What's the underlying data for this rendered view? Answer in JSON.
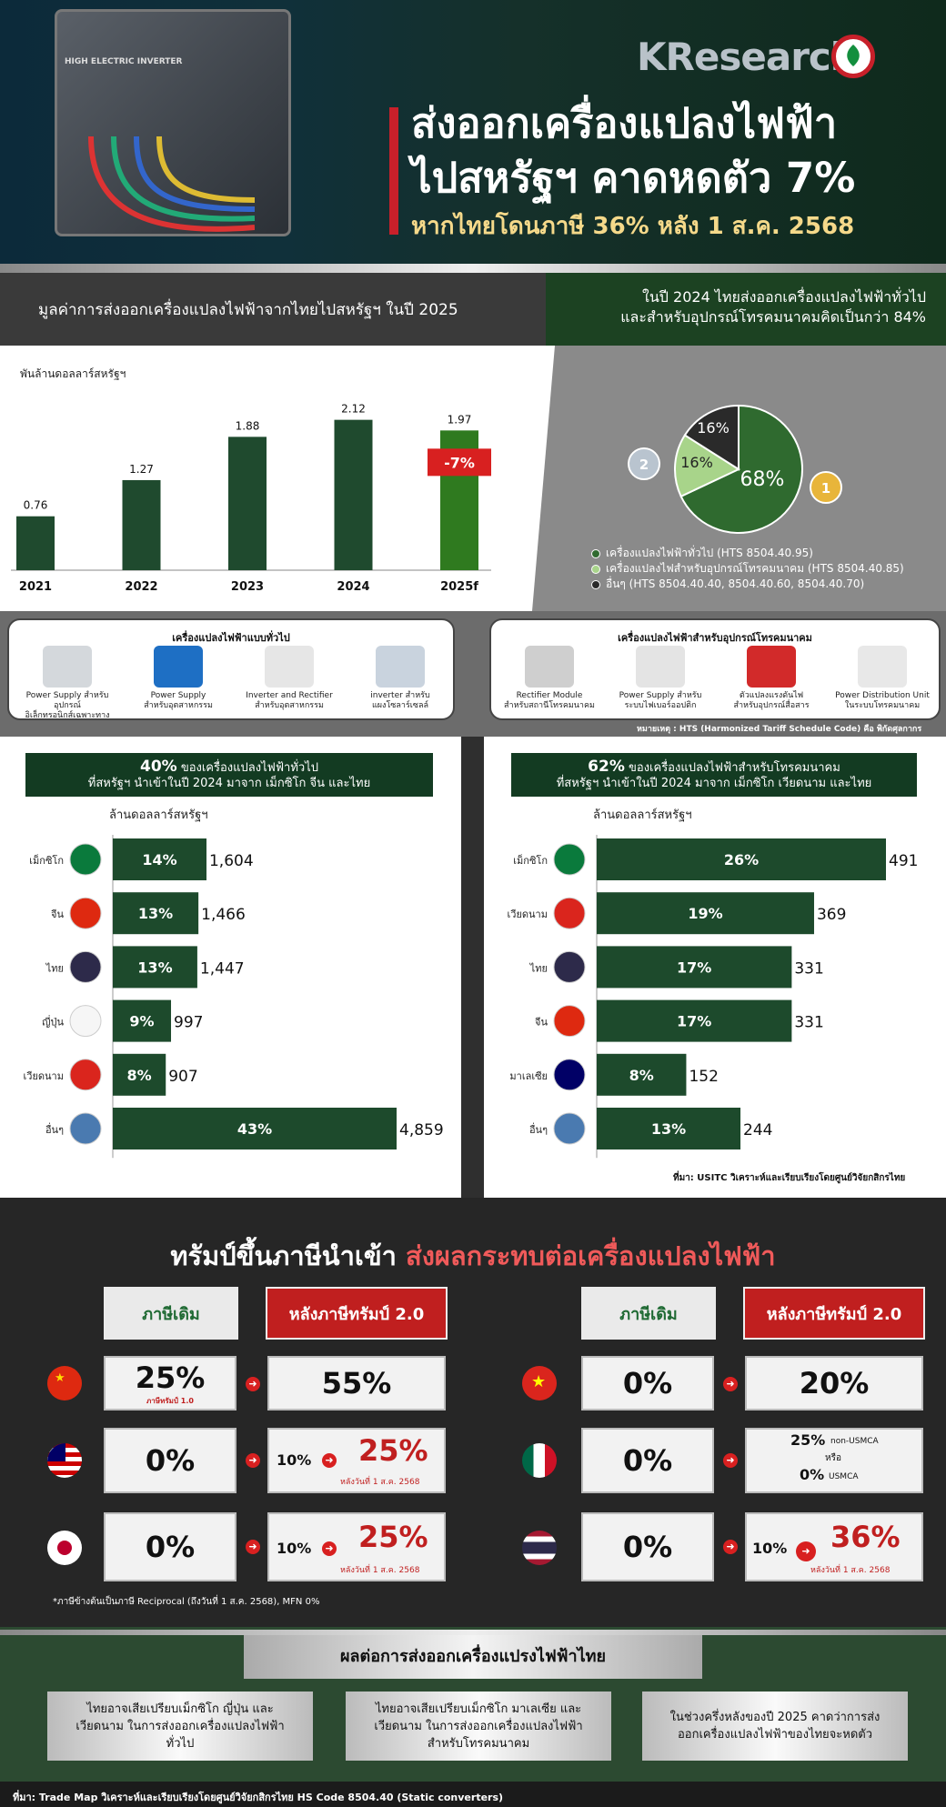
{
  "header": {
    "logo": "KResearch",
    "title_line1": "ส่งออกเครื่องแปลงไฟฟ้า",
    "title_line2": "ไปสหรัฐฯ คาดหดตัว 7%",
    "subtitle": "หากไทยโดนภาษี 36% หลัง 1 ส.ค. 2568",
    "machine_label": "HIGH ELECTRIC INVERTER"
  },
  "left_heading": "มูลค่าการส่งออกเครื่องแปลงไฟฟ้าจากไทยไปสหรัฐฯ ในปี 2025",
  "right_heading_1": "ในปี 2024 ไทยส่งออกเครื่องแปลงไฟฟ้าทั่วไป",
  "right_heading_2": "และสำหรับอุปกรณ์โทรคมนาคมคิดเป็นกว่า 84%",
  "chart_data": [
    {
      "type": "bar",
      "ylabel": "พันล้านดอลลาร์สหรัฐฯ",
      "categories": [
        "2021",
        "2022",
        "2023",
        "2024",
        "2025f"
      ],
      "values": [
        0.76,
        1.27,
        1.88,
        2.12,
        1.97
      ],
      "annotation": "-7%",
      "colors": [
        "#1f4a2e",
        "#1f4a2e",
        "#1f4a2e",
        "#1f4a2e",
        "#2f7a1f"
      ]
    },
    {
      "type": "pie",
      "slices": [
        {
          "name": "เครื่องแปลงไฟฟ้าทั่วไป (HTS 8504.40.95)",
          "value": 68,
          "label": "68%",
          "color": "#2f6a2f"
        },
        {
          "name": "เครื่องแปลงไฟสำหรับอุปกรณ์โทรคมนาคม (HTS 8504.40.85)",
          "value": 16,
          "label": "16%",
          "color": "#a8d48a"
        },
        {
          "name": "อื่นๆ (HTS 8504.40.40, 8504.40.60, 8504.40.70)",
          "value": 16,
          "label": "16%",
          "color": "#2a2a2a"
        }
      ],
      "badges": [
        "1",
        "2"
      ]
    },
    {
      "type": "bar",
      "orientation": "horizontal",
      "ylabel": "ล้านดอลลาร์สหรัฐฯ",
      "categories": [
        "เม็กซิโก",
        "จีน",
        "ไทย",
        "ญี่ปุ่น",
        "เวียดนาม",
        "อื่นๆ"
      ],
      "values": [
        1604,
        1466,
        1447,
        997,
        907,
        4859
      ],
      "value_labels": [
        "1,604",
        "1,466",
        "1,447",
        "997",
        "907",
        "4,859"
      ],
      "shares": [
        "14%",
        "13%",
        "13%",
        "9%",
        "8%",
        "43%"
      ]
    },
    {
      "type": "bar",
      "orientation": "horizontal",
      "ylabel": "ล้านดอลลาร์สหรัฐฯ",
      "categories": [
        "เม็กซิโก",
        "เวียดนาม",
        "ไทย",
        "จีน",
        "มาเลเซีย",
        "อื่นๆ"
      ],
      "values": [
        491,
        369,
        331,
        331,
        152,
        244
      ],
      "value_labels": [
        "491",
        "369",
        "331",
        "331",
        "152",
        "244"
      ],
      "shares": [
        "26%",
        "19%",
        "17%",
        "17%",
        "8%",
        "13%"
      ]
    }
  ],
  "products_general": {
    "title": "เครื่องแปลงไฟฟ้าแบบทั่วไป",
    "items": [
      {
        "l1": "Power Supply สำหรับอุปกรณ์",
        "l2": "อิเล็กทรอนิกส์เฉพาะทาง"
      },
      {
        "l1": "Power Supply",
        "l2": "สำหรับอุตสาหกรรม"
      },
      {
        "l1": "Inverter and Rectifier",
        "l2": "สำหรับอุตสาหกรรม"
      },
      {
        "l1": "inverter สำหรับ",
        "l2": "แผงโซลาร์เซลล์"
      }
    ]
  },
  "products_telecom": {
    "title": "เครื่องแปลงไฟฟ้าสำหรับอุปกรณ์โทรคมนาคม",
    "items": [
      {
        "l1": "Rectifier Module",
        "l2": "สำหรับสถานีโทรคมนาคม"
      },
      {
        "l1": "Power Supply สำหรับ",
        "l2": "ระบบไฟเบอร์ออปติก"
      },
      {
        "l1": "ตัวแปลงแรงดันไฟ",
        "l2": "สำหรับอุปกรณ์สื่อสาร"
      },
      {
        "l1": "Power Distribution Unit",
        "l2": "ในระบบโทรคมนาคม"
      }
    ]
  },
  "note_hts": "หมายเหตุ : HTS (Harmonized Tariff Schedule Code) คือ พิกัดศุลกากร",
  "hb_left_head_big": "40%",
  "hb_left_head_rest": " ของเครื่องแปลงไฟฟ้าทั่วไป",
  "hb_left_head_2": "ที่สหรัฐฯ นำเข้าในปี 2024 มาจาก เม็กซิโก จีน และไทย",
  "hb_right_head_big": "62%",
  "hb_right_head_rest": " ของเครื่องแปลงไฟฟ้าสำหรับโทรคมนาคม",
  "hb_right_head_2": "ที่สหรัฐฯ นำเข้าในปี 2024 มาจาก เม็กซิโก เวียดนาม และไทย",
  "source_1": "ที่มา: USITC วิเคราะห์และเรียบเรียงโดยศูนย์วิจัยกสิกรไทย",
  "tariff": {
    "title_white": "ทรัมป์ขึ้นภาษีนำเข้า ",
    "title_red": "ส่งผลกระทบต่อเครื่องแปลงไฟฟ้า",
    "old_label": "ภาษีเดิม",
    "new_label": "หลังภาษีทรัมป์ 2.0",
    "left_rows": [
      {
        "old": "25%",
        "old_sub": "ภาษีทรัมป์ 1.0",
        "new_pre": "",
        "new": "55%",
        "new_sub": ""
      },
      {
        "old": "0%",
        "old_sub": "",
        "new_pre": "10%",
        "new": "25%",
        "new_sub": "หลังวันที่ 1 ส.ค. 2568"
      },
      {
        "old": "0%",
        "old_sub": "",
        "new_pre": "10%",
        "new": "25%",
        "new_sub": "หลังวันที่ 1 ส.ค. 2568"
      }
    ],
    "right_rows": [
      {
        "old": "0%",
        "new": "20%"
      },
      {
        "old": "0%",
        "new_a": "25%",
        "new_a_sub": "non-USMCA",
        "new_or": "หรือ",
        "new_b": "0%",
        "new_b_sub": "USMCA"
      },
      {
        "old": "0%",
        "new_pre": "10%",
        "new": "36%",
        "new_sub": "หลังวันที่ 1 ส.ค. 2568"
      }
    ],
    "note": "*ภาษีข้างต้นเป็นภาษี Reciprocal  (ถึงวันที่ 1 ส.ค. 2568), MFN 0%"
  },
  "effects": {
    "title": "ผลต่อการส่งออกเครื่องแปรงไฟฟ้าไทย",
    "box1": "ไทยอาจเสียเปรียบเม็กซิโก ญี่ปุ่น และเวียดนาม ในการส่งออกเครื่องแปลงไฟฟ้าทั่วไป",
    "box2": "ไทยอาจเสียเปรียบเม็กซิโก มาเลเซีย และเวียดนาม ในการส่งออกเครื่องแปลงไฟฟ้าสำหรับโทรคมนาคม",
    "box3": "ในช่วงครึ่งหลังของปี 2025 คาดว่าการส่งออกเครื่องแปลงไฟฟ้าของไทยจะหดตัว"
  },
  "footer": "ที่มา: Trade Map วิเคราะห์และเรียบเรียงโดยศูนย์วิจัยกสิกรไทย  HS Code 8504.40 (Static converters)"
}
